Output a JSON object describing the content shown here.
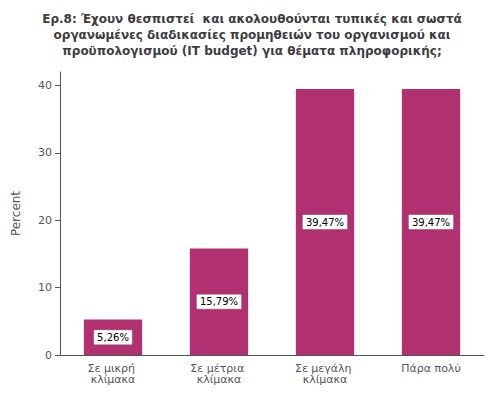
{
  "chart_data": {
    "type": "bar",
    "title": "Ερ.8: Έχουν θεσπιστεί  και ακολουθούνται τυπικές και σωστά\nοργανωμένες διαδικασίες προμηθειών του οργανισμού και\nπροϋπολογισμού (IT budget) για θέματα πληροφορικής;",
    "categories": [
      "Σε μικρή κλίμακα",
      "Σε μέτρια κλίμακα",
      "Σε μεγάλη κλίμακα",
      "Πάρα πολύ"
    ],
    "values": [
      5.26,
      15.79,
      39.47,
      39.47
    ],
    "value_labels": [
      "5,26%",
      "15,79%",
      "39,47%",
      "39,47%"
    ],
    "data_labels": true,
    "color": "#b03070",
    "ylabel": "Percent",
    "ylim": [
      0,
      42
    ],
    "yticks": [
      0,
      10,
      20,
      30,
      40
    ],
    "grid": false
  }
}
